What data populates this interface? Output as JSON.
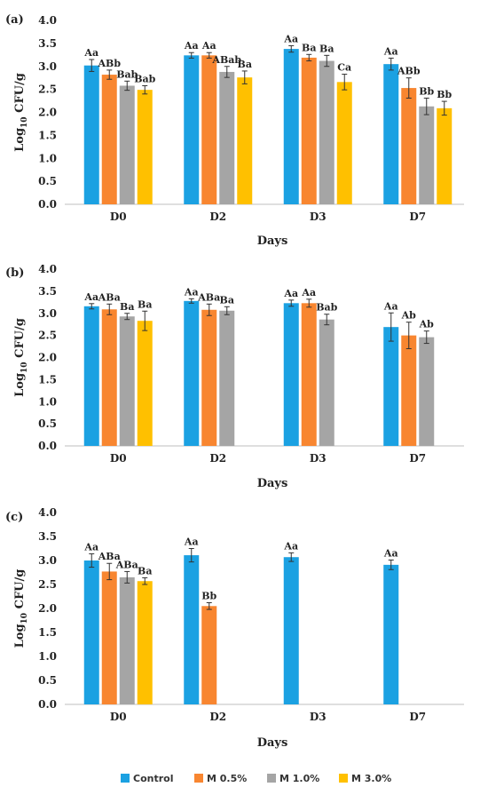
{
  "legend": [
    {
      "name": "Control",
      "color": "#1ba1e2"
    },
    {
      "name": "M 0.5%",
      "color": "#f88630"
    },
    {
      "name": "M 1.0%",
      "color": "#a5a5a5"
    },
    {
      "name": "M 3.0%",
      "color": "#ffc000"
    }
  ],
  "chart_data": [
    {
      "type": "bar",
      "panel_label": "(a)",
      "xlabel": "Days",
      "ylabel_main": "Log",
      "ylabel_sub": "10",
      "ylabel_tail": " CFU/g",
      "ylim": [
        0,
        4
      ],
      "yticks": [
        "0.0",
        "0.5",
        "1.0",
        "1.5",
        "2.0",
        "2.5",
        "3.0",
        "3.5",
        "4.0"
      ],
      "categories": [
        "D0",
        "D2",
        "D3",
        "D7"
      ],
      "series": [
        {
          "name": "Control",
          "values": [
            3.02,
            3.24,
            3.38,
            3.05
          ],
          "errors": [
            0.13,
            0.06,
            0.07,
            0.13
          ],
          "labels": [
            "Aa",
            "Aa",
            "Aa",
            "Aa"
          ]
        },
        {
          "name": "M 0.5%",
          "values": [
            2.82,
            3.24,
            3.19,
            2.53
          ],
          "errors": [
            0.1,
            0.06,
            0.07,
            0.22
          ],
          "labels": [
            "ABb",
            "Aa",
            "Ba",
            "ABb"
          ]
        },
        {
          "name": "M 1.0%",
          "values": [
            2.58,
            2.88,
            3.12,
            2.13
          ],
          "errors": [
            0.1,
            0.12,
            0.12,
            0.18
          ],
          "labels": [
            "Bab",
            "ABab",
            "Ba",
            "Bb"
          ]
        },
        {
          "name": "M 3.0%",
          "values": [
            2.49,
            2.76,
            2.66,
            2.09
          ],
          "errors": [
            0.09,
            0.14,
            0.17,
            0.15
          ],
          "labels": [
            "Bab",
            "Ba",
            "Ca",
            "Bb"
          ]
        }
      ]
    },
    {
      "type": "bar",
      "panel_label": "(b)",
      "xlabel": "Days",
      "ylabel_main": "Log",
      "ylabel_sub": "10",
      "ylabel_tail": " CFU/g",
      "ylim": [
        0,
        4
      ],
      "yticks": [
        "0.0",
        "0.5",
        "1.0",
        "1.5",
        "2.0",
        "2.5",
        "3.0",
        "3.5",
        "4.0"
      ],
      "categories": [
        "D0",
        "D2",
        "D3",
        "D7"
      ],
      "series": [
        {
          "name": "Control",
          "values": [
            3.16,
            3.28,
            3.23,
            2.69
          ],
          "errors": [
            0.06,
            0.05,
            0.07,
            0.32
          ],
          "labels": [
            "Aa",
            "Aa",
            "Aa",
            "Aa"
          ]
        },
        {
          "name": "M 0.5%",
          "values": [
            3.09,
            3.08,
            3.23,
            2.5
          ],
          "errors": [
            0.12,
            0.13,
            0.09,
            0.3
          ],
          "labels": [
            "ABa",
            "ABa",
            "Aa",
            "Ab"
          ]
        },
        {
          "name": "M 1.0%",
          "values": [
            2.93,
            3.06,
            2.86,
            2.46
          ],
          "errors": [
            0.07,
            0.09,
            0.12,
            0.14
          ],
          "labels": [
            "Ba",
            "Ba",
            "Bab",
            "Ab"
          ]
        },
        {
          "name": "M 3.0%",
          "values": [
            2.83,
            null,
            null,
            null
          ],
          "errors": [
            0.22,
            null,
            null,
            null
          ],
          "labels": [
            "Ba",
            "",
            "",
            ""
          ]
        }
      ]
    },
    {
      "type": "bar",
      "panel_label": "(c)",
      "xlabel": "Days",
      "ylabel_main": "Log",
      "ylabel_sub": "10",
      "ylabel_tail": " CFU/g",
      "ylim": [
        0,
        4
      ],
      "yticks": [
        "0.0",
        "0.5",
        "1.0",
        "1.5",
        "2.0",
        "2.5",
        "3.0",
        "3.5",
        "4.0"
      ],
      "categories": [
        "D0",
        "D2",
        "D3",
        "D7"
      ],
      "series": [
        {
          "name": "Control",
          "values": [
            3.0,
            3.11,
            3.07,
            2.91
          ],
          "errors": [
            0.14,
            0.14,
            0.09,
            0.1
          ],
          "labels": [
            "Aa",
            "Aa",
            "Aa",
            "Aa"
          ]
        },
        {
          "name": "M 0.5%",
          "values": [
            2.77,
            2.05,
            null,
            null
          ],
          "errors": [
            0.17,
            0.07,
            null,
            null
          ],
          "labels": [
            "ABa",
            "Bb",
            "",
            ""
          ]
        },
        {
          "name": "M 1.0%",
          "values": [
            2.65,
            null,
            null,
            null
          ],
          "errors": [
            0.12,
            null,
            null,
            null
          ],
          "labels": [
            "ABa",
            "",
            "",
            ""
          ]
        },
        {
          "name": "M 3.0%",
          "values": [
            2.57,
            null,
            null,
            null
          ],
          "errors": [
            0.07,
            null,
            null,
            null
          ],
          "labels": [
            "Ba",
            "",
            "",
            ""
          ]
        }
      ]
    }
  ]
}
